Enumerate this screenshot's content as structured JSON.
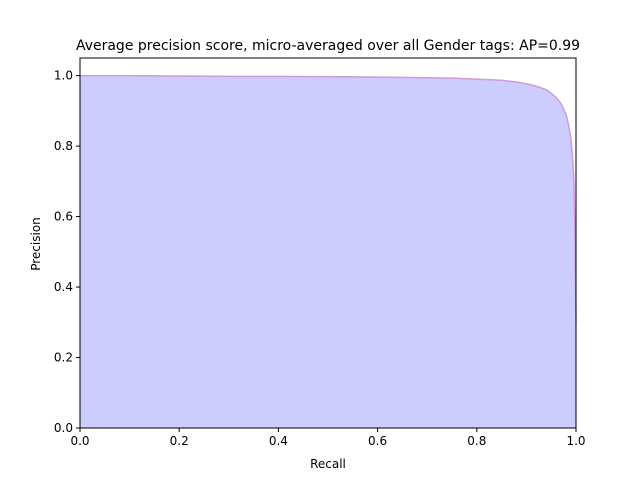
{
  "chart_data": {
    "type": "area",
    "title": "Average precision score, micro-averaged over all Gender tags: AP=0.99",
    "xlabel": "Recall",
    "ylabel": "Precision",
    "xlim": [
      0.0,
      1.0
    ],
    "ylim": [
      0.0,
      1.05
    ],
    "x_ticks": [
      0.0,
      0.2,
      0.4,
      0.6,
      0.8,
      1.0
    ],
    "y_ticks": [
      0.0,
      0.2,
      0.4,
      0.6,
      0.8,
      1.0
    ],
    "x_tick_labels": [
      "0.0",
      "0.2",
      "0.4",
      "0.6",
      "0.8",
      "1.0"
    ],
    "y_tick_labels": [
      "0.0",
      "0.2",
      "0.4",
      "0.6",
      "0.8",
      "1.0"
    ],
    "grid": false,
    "fill_color": "#ccccff",
    "line_color": "#cc88cc",
    "series": [
      {
        "x": [
          0.0,
          0.1,
          0.2,
          0.3,
          0.4,
          0.5,
          0.6,
          0.65,
          0.7,
          0.75,
          0.8,
          0.85,
          0.88,
          0.9,
          0.92,
          0.94,
          0.95,
          0.96,
          0.97,
          0.98,
          0.985,
          0.99,
          0.993,
          0.996,
          0.998,
          1.0
        ],
        "y": [
          1.0,
          1.0,
          0.999,
          0.998,
          0.998,
          0.997,
          0.996,
          0.995,
          0.994,
          0.993,
          0.99,
          0.987,
          0.982,
          0.977,
          0.97,
          0.96,
          0.95,
          0.938,
          0.92,
          0.89,
          0.86,
          0.82,
          0.77,
          0.7,
          0.55,
          0.3
        ]
      }
    ]
  }
}
